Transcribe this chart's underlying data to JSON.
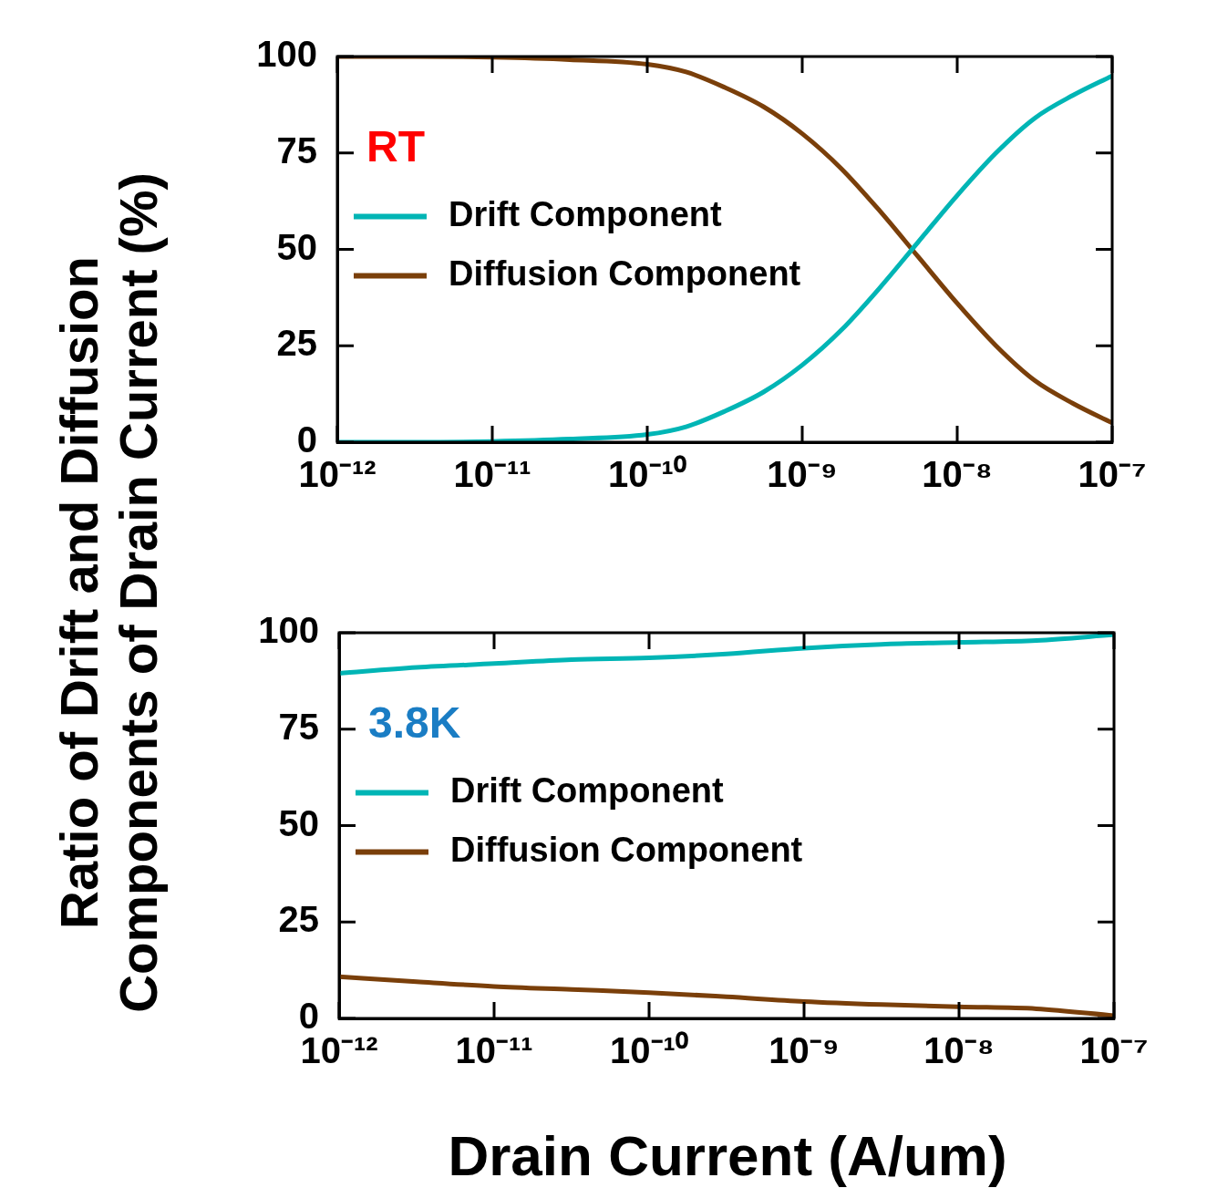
{
  "chart_data": [
    {
      "type": "line",
      "ylabel": "Ratio of Drift and Diffusion Components of Drain Current (%)",
      "annotations": [
        "RT"
      ],
      "log": "x",
      "legend": "top left",
      "marker": "none",
      "line_style": "solid",
      "grid": false,
      "x": [
        1e-12,
        3.16e-12,
        1e-11,
        3.16e-11,
        1e-10,
        1.78e-10,
        3.16e-10,
        5.62e-10,
        1e-09,
        1.78e-09,
        3.16e-09,
        5.62e-09,
        1e-08,
        1.78e-08,
        3.16e-08,
        5.62e-08,
        1e-07
      ],
      "xlim": [
        1e-12,
        1e-07
      ],
      "xticks": [
        {
          "value": 1e-12,
          "label": "10⁻¹²"
        },
        {
          "value": 1e-11,
          "label": "10⁻¹¹"
        },
        {
          "value": 1e-10,
          "label": "10⁻¹⁰"
        },
        {
          "value": 1e-09,
          "label": "10⁻⁹"
        },
        {
          "value": 1e-08,
          "label": "10⁻⁸"
        },
        {
          "value": 1e-07,
          "label": "10⁻⁷"
        }
      ],
      "ylim": [
        0,
        100
      ],
      "yticks": [
        0,
        25,
        50,
        75,
        100
      ],
      "series": [
        {
          "name": "Drift Component",
          "color": "#00b5b5",
          "values": [
            0,
            0,
            0.2,
            0.8,
            2,
            4,
            8,
            13,
            20,
            29,
            40,
            52,
            64,
            75,
            84,
            90,
            95
          ]
        },
        {
          "name": "Diffusion Component",
          "color": "#7a3f0a",
          "values": [
            100,
            100,
            99.8,
            99.2,
            98,
            96,
            92,
            87,
            80,
            71,
            60,
            48,
            36,
            25,
            16,
            10,
            5
          ]
        }
      ]
    },
    {
      "type": "line",
      "xlabel": "Drain Current (A/um)",
      "annotations": [
        "3.8K"
      ],
      "log": "x",
      "legend": "top left",
      "marker": "none",
      "line_style": "solid",
      "grid": false,
      "x": [
        1e-12,
        3.16e-12,
        1e-11,
        3.16e-11,
        1e-10,
        3.16e-10,
        1e-09,
        3.16e-09,
        1e-08,
        3.16e-08,
        1e-07
      ],
      "xlim": [
        1e-12,
        1e-07
      ],
      "xticks": [
        {
          "value": 1e-12,
          "label": "10⁻¹²"
        },
        {
          "value": 1e-11,
          "label": "10⁻¹¹"
        },
        {
          "value": 1e-10,
          "label": "10⁻¹⁰"
        },
        {
          "value": 1e-09,
          "label": "10⁻⁹"
        },
        {
          "value": 1e-08,
          "label": "10⁻⁸"
        },
        {
          "value": 1e-07,
          "label": "10⁻⁷"
        }
      ],
      "ylim": [
        0,
        100
      ],
      "yticks": [
        0,
        25,
        50,
        75,
        100
      ],
      "series": [
        {
          "name": "Drift Component",
          "color": "#00b5b5",
          "values": [
            89.5,
            91,
            92,
            93,
            93.5,
            94.5,
            96,
            97,
            97.5,
            98,
            99.5
          ]
        },
        {
          "name": "Diffusion Component",
          "color": "#7a3f0a",
          "values": [
            10.8,
            9.5,
            8.3,
            7.5,
            6.7,
            5.6,
            4.4,
            3.6,
            3,
            2.5,
            0.7
          ]
        }
      ]
    }
  ]
}
